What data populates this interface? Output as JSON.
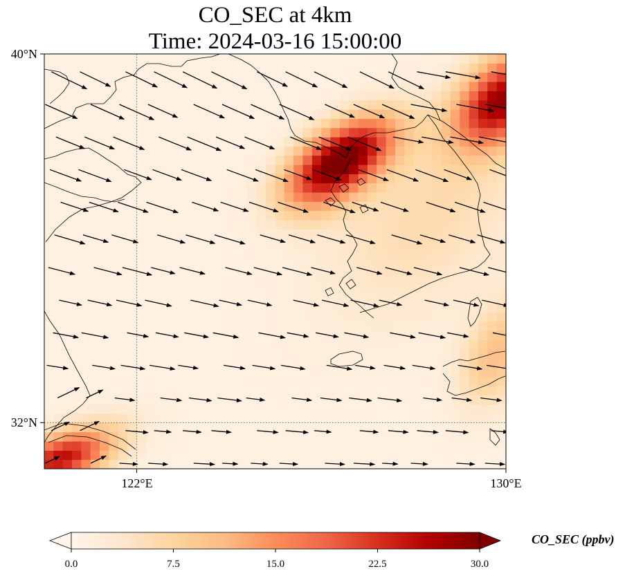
{
  "title": {
    "line1": "CO_SEC at 4km",
    "line2": "Time: 2024-03-16 15:00:00"
  },
  "map": {
    "extent": {
      "lon_min": 120.0,
      "lon_max": 130.0,
      "lat_min": 31.0,
      "lat_max": 40.0
    },
    "lat_ticks": [
      {
        "value": 40,
        "label": "40°N"
      },
      {
        "value": 32,
        "label": "32°N"
      }
    ],
    "lon_ticks": [
      {
        "value": 122,
        "label": "122°E"
      },
      {
        "value": 130,
        "label": "130°E"
      }
    ],
    "gridlines": "dotted",
    "field_note": "CO_SEC concentration shading with wind vectors",
    "plumes": [
      {
        "lon": 126.1,
        "lat": 37.4,
        "value": 20.0,
        "spread_lon": 0.9,
        "spread_lat": 0.75
      },
      {
        "lon": 126.8,
        "lat": 38.0,
        "value": 16.5,
        "spread_lon": 0.9,
        "spread_lat": 0.7
      },
      {
        "lon": 129.9,
        "lat": 39.0,
        "value": 26.0,
        "spread_lon": 0.9,
        "spread_lat": 0.9
      },
      {
        "lon": 120.3,
        "lat": 31.2,
        "value": 21.0,
        "spread_lon": 0.9,
        "spread_lat": 0.5
      },
      {
        "lon": 129.8,
        "lat": 33.5,
        "value": 9.0,
        "spread_lon": 0.7,
        "spread_lat": 1.0
      },
      {
        "lon": 128.3,
        "lat": 36.5,
        "value": 5.0,
        "spread_lon": 2.0,
        "spread_lat": 2.0
      },
      {
        "lon": 121.0,
        "lat": 31.6,
        "value": 5.0,
        "spread_lon": 1.0,
        "spread_lat": 0.6
      }
    ],
    "background_value": 1.2
  },
  "colorbar": {
    "label": "CO_SEC (ppbv)",
    "ticks": [
      "0.0",
      "7.5",
      "15.0",
      "22.5",
      "30.0"
    ],
    "vmin": 0,
    "vmax": 30,
    "colors": [
      "#fff5eb",
      "#fee6ce",
      "#fdd0a2",
      "#fdae6b",
      "#fd8d3c",
      "#f16913",
      "#d94801",
      "#a63603",
      "#7f2704"
    ]
  }
}
